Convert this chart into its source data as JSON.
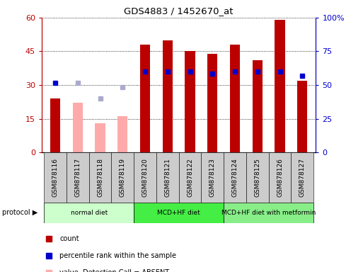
{
  "title": "GDS4883 / 1452670_at",
  "samples": [
    "GSM878116",
    "GSM878117",
    "GSM878118",
    "GSM878119",
    "GSM878120",
    "GSM878121",
    "GSM878122",
    "GSM878123",
    "GSM878124",
    "GSM878125",
    "GSM878126",
    "GSM878127"
  ],
  "count_values": [
    24,
    null,
    null,
    null,
    48,
    50,
    45,
    44,
    48,
    41,
    59,
    32
  ],
  "count_absent": [
    null,
    22,
    13,
    16,
    null,
    null,
    null,
    null,
    null,
    null,
    null,
    null
  ],
  "pct_present": [
    31,
    null,
    null,
    null,
    36,
    36,
    36,
    35,
    36,
    36,
    36,
    34
  ],
  "pct_absent": [
    null,
    31,
    24,
    29,
    null,
    null,
    null,
    null,
    null,
    null,
    null,
    null
  ],
  "ylim_left": [
    0,
    60
  ],
  "ylim_right": [
    0,
    100
  ],
  "yticks_left": [
    0,
    15,
    30,
    45,
    60
  ],
  "yticks_right": [
    0,
    25,
    50,
    75,
    100
  ],
  "ytick_labels_left": [
    "0",
    "15",
    "30",
    "45",
    "60"
  ],
  "ytick_labels_right": [
    "0",
    "25",
    "50",
    "75",
    "100%"
  ],
  "protocols": [
    {
      "label": "normal diet",
      "start": 0,
      "end": 4,
      "color": "#ccffcc"
    },
    {
      "label": "MCD+HF diet",
      "start": 4,
      "end": 8,
      "color": "#44ee44"
    },
    {
      "label": "MCD+HF diet with metformin",
      "start": 8,
      "end": 12,
      "color": "#88ee88"
    }
  ],
  "bar_width": 0.45,
  "color_count_present": "#bb0000",
  "color_count_absent": "#ffaaaa",
  "color_pct_present": "#0000cc",
  "color_pct_absent": "#aaaacc",
  "tick_label_bg": "#cccccc",
  "bg_color": "#ffffff",
  "grid_linestyle": "dotted",
  "grid_color": "#000000"
}
